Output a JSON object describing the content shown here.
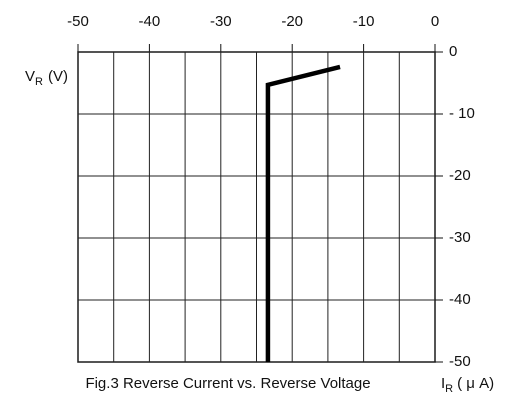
{
  "chart_data": {
    "type": "line",
    "caption": "Fig.3 Reverse Current vs. Reverse Voltage",
    "xlabel": {
      "symbol": "I",
      "subscript": "R",
      "unit": "( μ A)"
    },
    "ylabel": {
      "symbol": "V",
      "subscript": "R",
      "unit": "(V)"
    },
    "x": [
      -23.4,
      -23.4,
      -13.3
    ],
    "values": [
      -50,
      -5.3,
      -2.4
    ],
    "color": "#000000",
    "xlim": [
      -50,
      0
    ],
    "xticks": [
      -50,
      -40,
      -30,
      -20,
      -10,
      0
    ],
    "x_minor_grid": [
      -45,
      -35,
      -25,
      -15,
      -5
    ],
    "ylim": [
      -50,
      0
    ],
    "yticks": [
      0,
      {
        "value": -10,
        "label": "- 10"
      },
      -20,
      -30,
      -40,
      -50
    ],
    "grid": true
  }
}
